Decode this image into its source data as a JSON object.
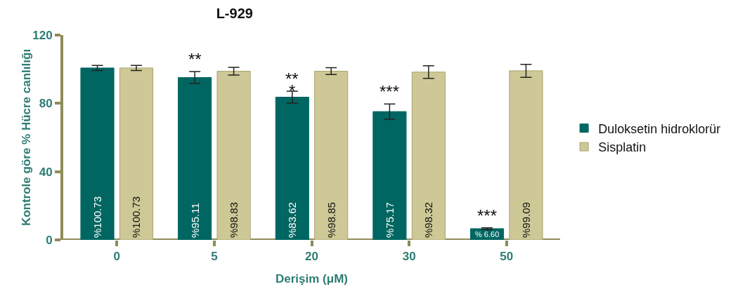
{
  "chart_data": {
    "type": "bar",
    "title": "L-929",
    "xlabel": "Derişim (μM)",
    "ylabel": "Kontrole göre % Hücre canlılığı",
    "categories": [
      "0",
      "5",
      "20",
      "30",
      "50"
    ],
    "series": [
      {
        "name": "Duloksetin hidroklorür",
        "color": "#006661",
        "values": [
          100.73,
          95.11,
          83.62,
          75.17,
          6.6
        ],
        "errors": [
          1.5,
          3.5,
          3.5,
          4.5,
          0.5
        ],
        "value_labels": [
          "%100.73",
          "%95.11",
          "%83.62",
          "%75.17",
          "% 6.60"
        ]
      },
      {
        "name": "Sisplatin",
        "color": "#cdc896",
        "values": [
          100.73,
          98.83,
          98.85,
          98.32,
          99.09
        ],
        "errors": [
          1.5,
          2.3,
          2,
          3.7,
          3.8
        ],
        "value_labels": [
          "%100.73",
          "%98.83",
          "%98.85",
          "%98.32",
          "%99.09"
        ]
      }
    ],
    "annotations": [
      {
        "text": "**",
        "x": "5",
        "y": 98.61
      },
      {
        "text": "**",
        "x": "20",
        "y": 87.12
      },
      {
        "text": "*",
        "x": "20",
        "y": 80.12
      },
      {
        "text": "***",
        "x": "30",
        "y": 79.67
      },
      {
        "text": "***",
        "x": "50",
        "y": 7.1
      }
    ],
    "ylim": [
      0,
      120
    ],
    "yticks": [
      0,
      40,
      80,
      120
    ],
    "grid": false,
    "legend": "right"
  }
}
